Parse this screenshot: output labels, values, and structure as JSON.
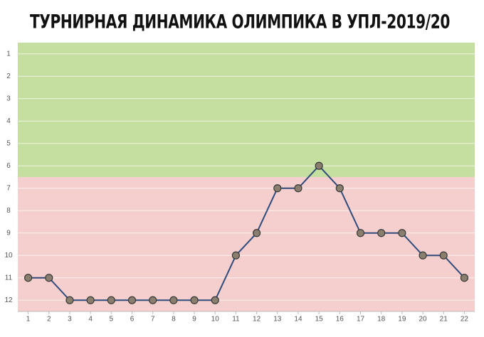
{
  "chart_data": {
    "type": "line",
    "title": "ТУРНИРНАЯ ДИНАМИКА ОЛИМПИКА В УПЛ-2019/20",
    "x": [
      1,
      2,
      3,
      4,
      5,
      6,
      7,
      8,
      9,
      10,
      11,
      12,
      13,
      14,
      15,
      16,
      17,
      18,
      19,
      20,
      21,
      22
    ],
    "series": [
      {
        "color": "#2f4b7c",
        "values": [
          11,
          11,
          12,
          12,
          12,
          12,
          12,
          12,
          12,
          12,
          10,
          9,
          7,
          7,
          6,
          7,
          9,
          9,
          9,
          10,
          10,
          11
        ]
      }
    ],
    "xlim": [
      0.5,
      22.5
    ],
    "xticks": [
      1,
      2,
      3,
      4,
      5,
      6,
      7,
      8,
      9,
      10,
      11,
      12,
      13,
      14,
      15,
      16,
      17,
      18,
      19,
      20,
      21,
      22
    ],
    "ylim": [
      0.5,
      12.5
    ],
    "yticks": [
      1,
      2,
      3,
      4,
      5,
      6,
      7,
      8,
      9,
      10,
      11,
      12
    ],
    "y_inverted": true,
    "grid": true,
    "bands": [
      {
        "from": 0.5,
        "to": 6.5,
        "color": "#c5dfa0"
      },
      {
        "from": 6.5,
        "to": 12.5,
        "color": "#f4cfcd"
      }
    ]
  }
}
